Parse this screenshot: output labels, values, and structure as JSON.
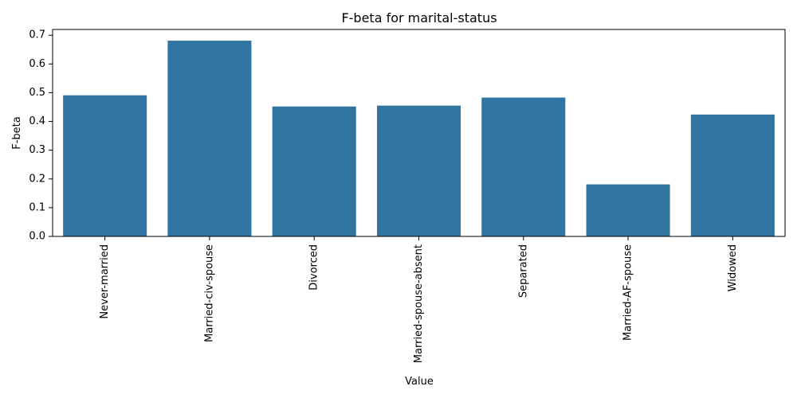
{
  "chart_data": {
    "type": "bar",
    "title": "F-beta for marital-status",
    "xlabel": "Value",
    "ylabel": "F-beta",
    "categories": [
      "Never-married",
      "Married-civ-spouse",
      "Divorced",
      "Married-spouse-absent",
      "Separated",
      "Married-AF-spouse",
      "Widowed"
    ],
    "values": [
      0.491,
      0.681,
      0.452,
      0.455,
      0.483,
      0.181,
      0.424
    ],
    "ylim": [
      0,
      0.72
    ],
    "yticks": [
      0.0,
      0.1,
      0.2,
      0.3,
      0.4,
      0.5,
      0.6,
      0.7
    ],
    "ytick_labels": [
      "0.0",
      "0.1",
      "0.2",
      "0.3",
      "0.4",
      "0.5",
      "0.6",
      "0.7"
    ],
    "bar_color": "#3274a1",
    "grid": false,
    "xtick_rotation": "vertical"
  }
}
